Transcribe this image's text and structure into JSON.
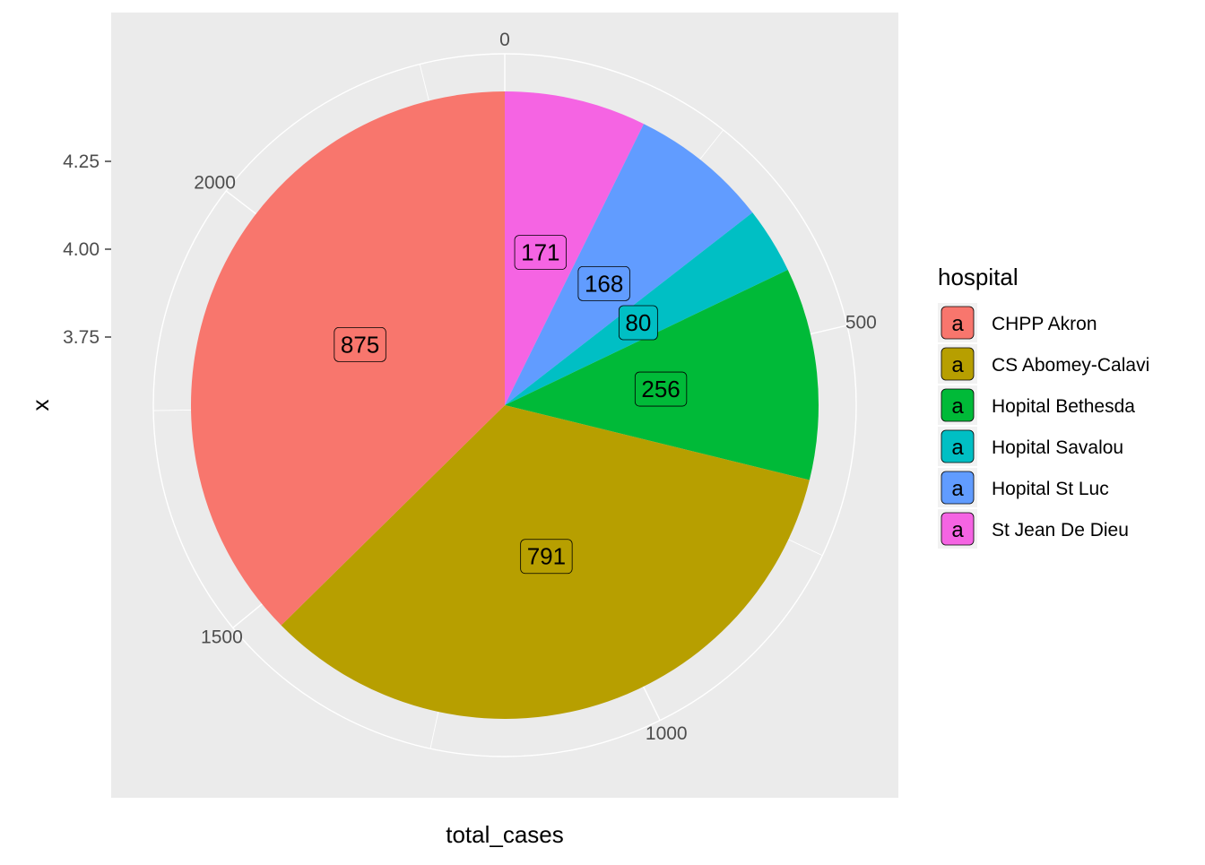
{
  "chart_data": {
    "type": "pie",
    "xlabel": "total_cases",
    "ylabel": "x",
    "y_ticks": [
      "4.25",
      "4.00",
      "3.75"
    ],
    "angular_ticks": [
      "0",
      "500",
      "1000",
      "1500",
      "2000"
    ],
    "angular_tick_values": [
      0,
      500,
      1000,
      1500,
      2000
    ],
    "total": 2341,
    "legend": {
      "title": "hospital",
      "position": "right",
      "key_glyph": "a"
    },
    "slices": [
      {
        "name": "St Jean De Dieu",
        "value": 171,
        "label": "171",
        "color": "#F564E3"
      },
      {
        "name": "Hopital St Luc",
        "value": 168,
        "label": "168",
        "color": "#619CFF"
      },
      {
        "name": "Hopital Savalou",
        "value": 80,
        "label": "80",
        "color": "#00BFC4"
      },
      {
        "name": "Hopital Bethesda",
        "value": 256,
        "label": "256",
        "color": "#00BA38"
      },
      {
        "name": "CS Abomey-Calavi",
        "value": 791,
        "label": "791",
        "color": "#B79F00"
      },
      {
        "name": "CHPP Akron",
        "value": 875,
        "label": "875",
        "color": "#F8766D"
      }
    ],
    "legend_order": [
      "CHPP Akron",
      "CS Abomey-Calavi",
      "Hopital Bethesda",
      "Hopital Savalou",
      "Hopital St Luc",
      "St Jean De Dieu"
    ],
    "colors": {
      "panel": "#EBEBEB",
      "grid": "#FFFFFF",
      "axis_text": "#4D4D4D",
      "text": "#000000"
    }
  }
}
